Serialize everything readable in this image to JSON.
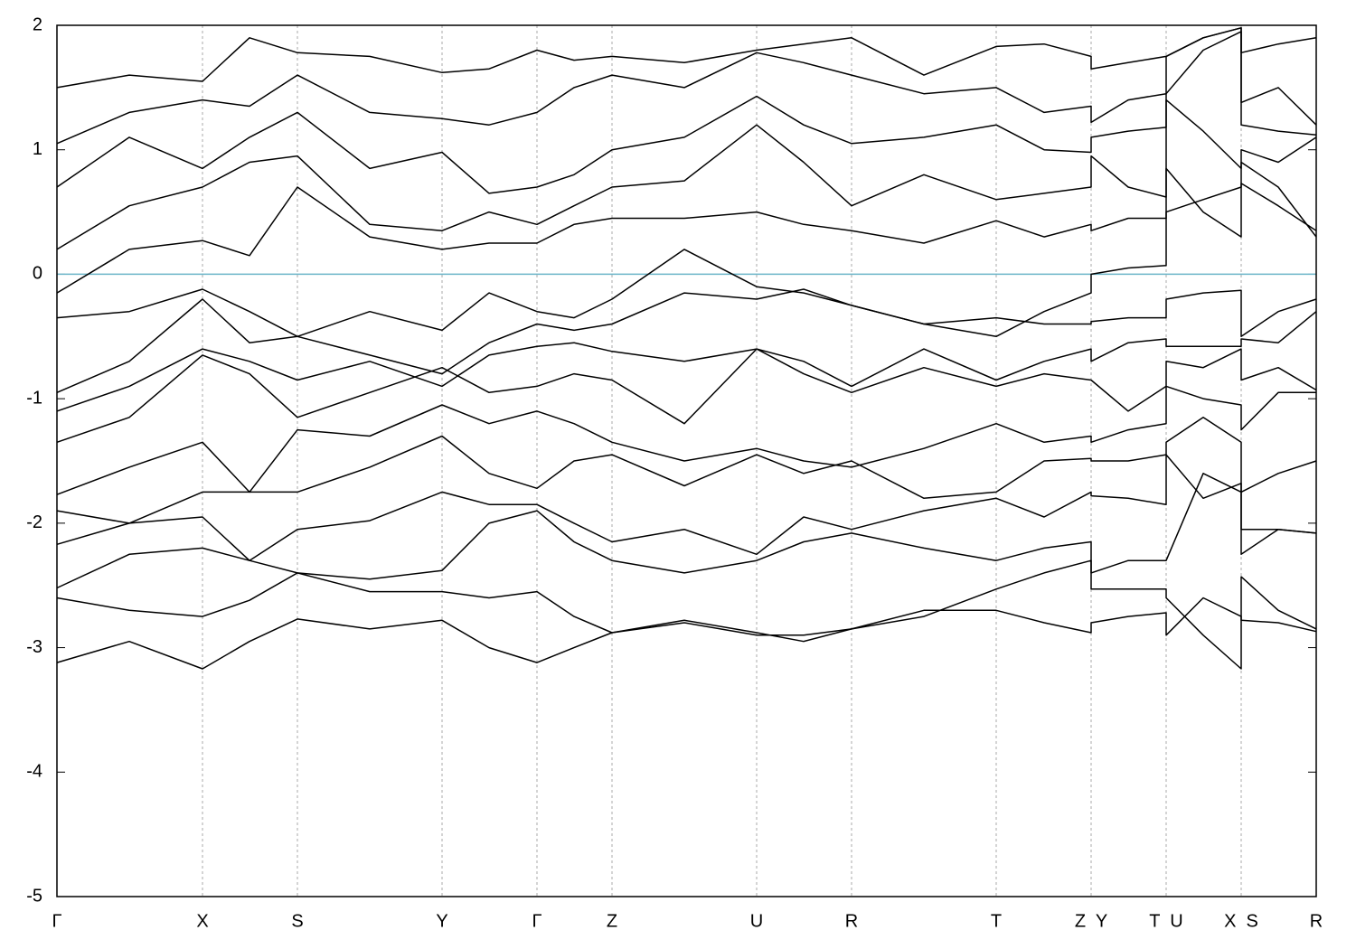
{
  "chart_data": {
    "type": "line",
    "xlim": [
      0,
      13.93
    ],
    "ylim": [
      -5,
      2
    ],
    "yticks": [
      -5,
      -4,
      -3,
      -2,
      -1,
      0,
      1,
      2
    ],
    "xticks": [
      {
        "value": 0,
        "label": "Γ"
      },
      {
        "value": 1.61,
        "label": "X"
      },
      {
        "value": 2.66,
        "label": "S"
      },
      {
        "value": 4.26,
        "label": "Y"
      },
      {
        "value": 5.31,
        "label": "Γ"
      },
      {
        "value": 6.14,
        "label": "Z"
      },
      {
        "value": 7.74,
        "label": "U"
      },
      {
        "value": 8.79,
        "label": "R"
      },
      {
        "value": 10.39,
        "label": "T"
      },
      {
        "value": 11.44,
        "label": "Z  Y"
      },
      {
        "value": 12.27,
        "label": "T  U"
      },
      {
        "value": 13.1,
        "label": "X  S"
      },
      {
        "value": 13.93,
        "label": "R"
      }
    ],
    "xgrid": true,
    "hline": {
      "value": 0,
      "color": "#6cb5c9"
    },
    "x": [
      0,
      0.8,
      1.61,
      2.13,
      2.66,
      3.46,
      4.26,
      4.78,
      5.31,
      5.72,
      6.14,
      6.94,
      7.74,
      8.26,
      8.79,
      9.59,
      10.39,
      10.92,
      11.44,
      11.44,
      11.85,
      12.27,
      12.27,
      12.68,
      13.1,
      13.1,
      13.51,
      13.93
    ],
    "series": [
      {
        "color": "#000000",
        "values": [
          -3.12,
          -2.95,
          -3.17,
          -2.95,
          -2.77,
          -2.85,
          -2.78,
          -3.0,
          -3.12,
          -3.0,
          -2.88,
          -2.78,
          -2.88,
          -2.95,
          -2.85,
          -2.7,
          -2.7,
          -2.8,
          -2.88,
          -2.8,
          -2.75,
          -2.72,
          -2.9,
          -2.6,
          -2.75,
          -2.78,
          -2.8,
          -2.87
        ]
      },
      {
        "color": "#000000",
        "values": [
          -2.6,
          -2.7,
          -2.75,
          -2.62,
          -2.4,
          -2.55,
          -2.55,
          -2.6,
          -2.55,
          -2.75,
          -2.88,
          -2.8,
          -2.9,
          -2.9,
          -2.85,
          -2.75,
          -2.53,
          -2.4,
          -2.3,
          -2.53,
          -2.53,
          -2.53,
          -2.6,
          -2.9,
          -3.17,
          -2.43,
          -2.7,
          -2.85
        ]
      },
      {
        "color": "#000000",
        "values": [
          -2.52,
          -2.25,
          -2.2,
          -2.3,
          -2.4,
          -2.45,
          -2.38,
          -2.0,
          -1.9,
          -2.15,
          -2.3,
          -2.4,
          -2.3,
          -2.15,
          -2.08,
          -2.2,
          -2.3,
          -2.2,
          -2.15,
          -2.4,
          -2.3,
          -2.3,
          -2.3,
          -1.6,
          -1.75,
          -2.25,
          -2.05,
          -2.08
        ]
      },
      {
        "color": "#000000",
        "values": [
          -2.17,
          -2.0,
          -1.95,
          -2.3,
          -2.05,
          -1.98,
          -1.75,
          -1.85,
          -1.85,
          -2.0,
          -2.15,
          -2.05,
          -2.25,
          -1.95,
          -2.05,
          -1.9,
          -1.8,
          -1.95,
          -1.75,
          -1.78,
          -1.8,
          -1.85,
          -1.45,
          -1.8,
          -1.68,
          -2.05,
          -2.05,
          -2.08
        ]
      },
      {
        "color": "#000000",
        "values": [
          -1.9,
          -2.0,
          -1.75,
          -1.75,
          -1.75,
          -1.55,
          -1.3,
          -1.6,
          -1.72,
          -1.5,
          -1.45,
          -1.7,
          -1.45,
          -1.6,
          -1.5,
          -1.8,
          -1.75,
          -1.5,
          -1.48,
          -1.5,
          -1.5,
          -1.45,
          -1.35,
          -1.15,
          -1.35,
          -1.75,
          -1.6,
          -1.5
        ]
      },
      {
        "color": "#000000",
        "values": [
          -1.77,
          -1.55,
          -1.35,
          -1.75,
          -1.25,
          -1.3,
          -1.05,
          -1.2,
          -1.1,
          -1.2,
          -1.35,
          -1.5,
          -1.4,
          -1.5,
          -1.55,
          -1.4,
          -1.2,
          -1.35,
          -1.3,
          -1.35,
          -1.25,
          -1.2,
          -0.9,
          -1.0,
          -1.05,
          -1.25,
          -0.95,
          -0.95
        ]
      },
      {
        "color": "#000000",
        "values": [
          -1.35,
          -1.15,
          -0.65,
          -0.8,
          -1.15,
          -0.95,
          -0.75,
          -0.95,
          -0.9,
          -0.8,
          -0.85,
          -1.2,
          -0.6,
          -0.8,
          -0.95,
          -0.75,
          -0.9,
          -0.8,
          -0.85,
          -0.85,
          -1.1,
          -0.9,
          -0.7,
          -0.75,
          -0.6,
          -0.85,
          -0.75,
          -0.93
        ]
      },
      {
        "color": "#000000",
        "values": [
          -1.1,
          -0.9,
          -0.6,
          -0.7,
          -0.85,
          -0.7,
          -0.9,
          -0.65,
          -0.58,
          -0.55,
          -0.62,
          -0.7,
          -0.6,
          -0.7,
          -0.9,
          -0.6,
          -0.85,
          -0.7,
          -0.6,
          -0.7,
          -0.55,
          -0.52,
          -0.58,
          -0.58,
          -0.58,
          -0.52,
          -0.55,
          -0.3
        ]
      },
      {
        "color": "#000000",
        "values": [
          -0.95,
          -0.7,
          -0.2,
          -0.55,
          -0.5,
          -0.65,
          -0.8,
          -0.55,
          -0.4,
          -0.45,
          -0.4,
          -0.15,
          -0.2,
          -0.12,
          -0.25,
          -0.4,
          -0.35,
          -0.4,
          -0.4,
          -0.38,
          -0.35,
          -0.35,
          -0.2,
          -0.15,
          -0.13,
          -0.5,
          -0.3,
          -0.2
        ]
      },
      {
        "color": "#000000",
        "values": [
          -0.35,
          -0.3,
          -0.12,
          -0.3,
          -0.5,
          -0.3,
          -0.45,
          -0.15,
          -0.3,
          -0.35,
          -0.2,
          0.2,
          -0.1,
          -0.15,
          -0.25,
          -0.4,
          -0.5,
          -0.3,
          -0.15,
          0,
          0.05,
          0.07,
          0.5,
          0.6,
          0.7,
          0.73,
          0.55,
          0.35
        ]
      },
      {
        "color": "#000000",
        "values": [
          -0.15,
          0.2,
          0.27,
          0.15,
          0.7,
          0.3,
          0.2,
          0.25,
          0.25,
          0.4,
          0.45,
          0.45,
          0.5,
          0.4,
          0.35,
          0.25,
          0.43,
          0.3,
          0.4,
          0.35,
          0.45,
          0.45,
          0.85,
          0.5,
          0.3,
          0.9,
          0.7,
          0.3
        ]
      },
      {
        "color": "#000000",
        "values": [
          0.2,
          0.55,
          0.7,
          0.9,
          0.95,
          0.4,
          0.35,
          0.5,
          0.4,
          0.55,
          0.7,
          0.75,
          1.2,
          0.9,
          0.55,
          0.8,
          0.6,
          0.65,
          0.7,
          0.95,
          0.7,
          0.62,
          1.4,
          1.15,
          0.85,
          1.0,
          0.9,
          1.1
        ]
      },
      {
        "color": "#000000",
        "values": [
          0.7,
          1.1,
          0.85,
          1.1,
          1.3,
          0.85,
          0.98,
          0.65,
          0.7,
          0.8,
          1.0,
          1.1,
          1.43,
          1.2,
          1.05,
          1.1,
          1.2,
          1.0,
          0.98,
          1.1,
          1.15,
          1.18,
          1.45,
          1.8,
          1.95,
          1.2,
          1.15,
          1.12
        ]
      },
      {
        "color": "#000000",
        "values": [
          1.05,
          1.3,
          1.4,
          1.35,
          1.6,
          1.3,
          1.25,
          1.2,
          1.3,
          1.5,
          1.6,
          1.5,
          1.78,
          1.7,
          1.6,
          1.45,
          1.5,
          1.3,
          1.35,
          1.22,
          1.4,
          1.45,
          1.75,
          1.9,
          1.98,
          1.38,
          1.5,
          1.2
        ]
      },
      {
        "color": "#000000",
        "values": [
          1.5,
          1.6,
          1.55,
          1.9,
          1.78,
          1.75,
          1.62,
          1.65,
          1.8,
          1.72,
          1.75,
          1.7,
          1.8,
          1.85,
          1.9,
          1.6,
          1.83,
          1.85,
          1.75,
          1.65,
          1.7,
          1.75,
          1.75,
          1.9,
          1.98,
          1.78,
          1.85,
          1.9
        ]
      }
    ]
  }
}
